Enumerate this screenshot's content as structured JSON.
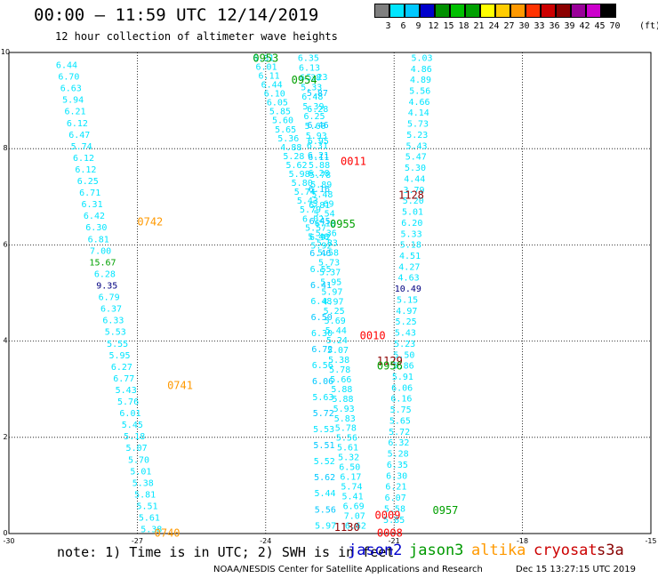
{
  "header": {
    "title": "00:00 – 11:59 UTC 12/14/2019",
    "subtitle": "12 hour collection of altimeter wave heights"
  },
  "color_scale": {
    "labels": [
      "3",
      "6",
      "9",
      "12",
      "15",
      "18",
      "21",
      "24",
      "27",
      "30",
      "33",
      "36",
      "39",
      "42",
      "45",
      "70"
    ],
    "unit": "(ft)",
    "colors": [
      "#7f7f7f",
      "#00e5ff",
      "#00c8ff",
      "#0000cc",
      "#009000",
      "#00c000",
      "#00a000",
      "#ffff00",
      "#ffcc00",
      "#ff9900",
      "#ff3300",
      "#cc0000",
      "#8b0000",
      "#990099",
      "#cc00cc",
      "#000000"
    ]
  },
  "footer": {
    "note": "note: 1) Time is in UTC; 2) SWH is in feet",
    "legend": [
      {
        "name": "jason2",
        "color": "#0000cc"
      },
      {
        "name": "jason3",
        "color": "#009900"
      },
      {
        "name": "altika",
        "color": "#ff9900"
      },
      {
        "name": "cryosat",
        "color": "#cc0000"
      },
      {
        "name": "s3a",
        "color": "#880000"
      }
    ],
    "credit": "NOAA/NESDIS Center for Satellite Applications and Research",
    "generated": "Dec 15 13:27:15 UTC 2019"
  },
  "chart_data": {
    "type": "scatter",
    "xlim": [
      -30,
      -15
    ],
    "ylim": [
      0,
      10
    ],
    "x_ticks": [
      "-30",
      "-27",
      "-24",
      "-21",
      "-18",
      "-15"
    ],
    "y_ticks": [
      "0",
      "2",
      "4",
      "6",
      "8",
      "10"
    ],
    "grid": true,
    "grid_style": "dotted",
    "colors": {
      "light": "#00e5ff",
      "dark": "#00c8ff",
      "navy": "#000080",
      "green": "#00a000",
      "orange": "#ff9900",
      "red": "#ff0000",
      "maroon": "#8b0000"
    },
    "tracks": [
      {
        "x0": -28.65,
        "y0": 9.75,
        "x1": -26.67,
        "y1": 0.1,
        "color": "light",
        "values": [
          "6.44",
          "6.70",
          "6.63",
          "5.94",
          "6.21",
          "6.12",
          "6.47",
          "5.74",
          "6.12",
          "6.12",
          "6.25",
          "6.71",
          "6.31",
          "6.42",
          "6.30",
          "6.81",
          "7.00",
          "15.67",
          "6.28",
          "9.35",
          "6.79",
          "6.37",
          "6.33",
          "5.53",
          "5.55",
          "5.95",
          "6.27",
          "6.77",
          "5.43",
          "5.76",
          "6.01",
          "5.45",
          "5.18",
          "5.07",
          "5.70",
          "5.01",
          "5.38",
          "5.81",
          "5.51",
          "5.61",
          "5.38"
        ],
        "overrides": {
          "17": "green",
          "19": "navy"
        }
      },
      {
        "x0": -24.05,
        "y0": 9.9,
        "x1": -22.7,
        "y1": 6.0,
        "color": "light",
        "values": [
          "6.31",
          "6.01",
          "6.11",
          "6.44",
          "6.10",
          "6.05",
          "5.85",
          "5.60",
          "5.65",
          "5.36",
          "4.88",
          "5.28",
          "5.62",
          "5.98",
          "5.80",
          "5.74",
          "5.43",
          "5.79",
          "6.02",
          "5.57",
          "5.48",
          "5.92"
        ]
      },
      {
        "x0": -23.0,
        "y0": 9.9,
        "x1": -21.9,
        "y1": 0.18,
        "color": "light",
        "values": [
          "6.35",
          "6.13",
          "6.38",
          "5.33",
          "6.48",
          "5.39",
          "6.25",
          "5.60",
          "5.93",
          "6.31",
          "6.21",
          "5.88",
          "5.78",
          "5.89",
          "5.48",
          "5.69",
          "5.54",
          "6.16",
          "5.36",
          "5.83",
          "5.58",
          "5.73",
          "5.37",
          "5.95",
          "5.97",
          "4.97",
          "5.25",
          "5.69",
          "5.44",
          "5.24",
          "5.07",
          "5.38",
          "5.78",
          "5.66",
          "5.88",
          "5.88",
          "5.93",
          "5.83",
          "5.78",
          "5.56",
          "5.61",
          "5.32",
          "6.50",
          "6.17",
          "5.74",
          "5.41",
          "6.69",
          "7.07",
          "6.62"
        ]
      },
      {
        "x0": -22.8,
        "y0": 9.5,
        "x1": -22.6,
        "y1": 0.18,
        "color": "light",
        "values": [
          "5.23",
          "5.87",
          "6.28",
          "6.46",
          "6.95",
          "6.11",
          "6.28",
          "6.16",
          "6.81",
          "6.45",
          "6.92",
          "6.46",
          "6.55",
          "6.41",
          "6.48",
          "6.50",
          "6.30",
          "6.72",
          "6.56",
          "6.06",
          "5.63",
          "5.72",
          "5.53",
          "5.51",
          "5.52",
          "5.62",
          "5.44",
          "5.56",
          "5.97"
        ],
        "color_alt": "dark"
      },
      {
        "x0": -20.35,
        "y0": 9.9,
        "x1": -21.0,
        "y1": 0.3,
        "color": "light",
        "values": [
          "5.03",
          "4.86",
          "4.89",
          "5.56",
          "4.66",
          "4.14",
          "5.73",
          "5.23",
          "5.43",
          "5.47",
          "5.30",
          "4.44",
          "3.79",
          "5.20",
          "5.01",
          "6.20",
          "5.33",
          "5.18",
          "4.51",
          "4.27",
          "4.63",
          "10.49",
          "5.15",
          "4.97",
          "5.25",
          "5.43",
          "5.23",
          "5.50",
          "5.86",
          "5.91",
          "6.06",
          "6.16",
          "5.75",
          "5.65",
          "5.72",
          "6.32",
          "5.28",
          "6.35",
          "6.30",
          "6.21",
          "6.07",
          "5.58",
          "5.85"
        ],
        "overrides": {
          "21": "navy"
        }
      }
    ],
    "passes": [
      {
        "label": "0953",
        "x": -24.0,
        "y": 9.9,
        "color": "green"
      },
      {
        "label": "0954",
        "x": -23.1,
        "y": 9.45,
        "color": "green"
      },
      {
        "label": "0011",
        "x": -21.95,
        "y": 7.75,
        "color": "red"
      },
      {
        "label": "1128",
        "x": -20.6,
        "y": 7.05,
        "color": "maroon"
      },
      {
        "label": "0742",
        "x": -26.7,
        "y": 6.5,
        "color": "orange"
      },
      {
        "label": "0955",
        "x": -22.2,
        "y": 6.45,
        "color": "green"
      },
      {
        "label": "0010",
        "x": -21.5,
        "y": 4.13,
        "color": "red"
      },
      {
        "label": "1129",
        "x": -21.1,
        "y": 3.6,
        "color": "maroon"
      },
      {
        "label": "0956",
        "x": -21.1,
        "y": 3.5,
        "color": "green"
      },
      {
        "label": "0741",
        "x": -26.0,
        "y": 3.1,
        "color": "orange"
      },
      {
        "label": "0957",
        "x": -19.8,
        "y": 0.5,
        "color": "green"
      },
      {
        "label": "0009",
        "x": -21.15,
        "y": 0.4,
        "color": "red"
      },
      {
        "label": "1130",
        "x": -22.1,
        "y": 0.15,
        "color": "maroon"
      },
      {
        "label": "0008",
        "x": -21.1,
        "y": 0.03,
        "color": "red"
      },
      {
        "label": "0740",
        "x": -26.3,
        "y": 0.03,
        "color": "orange"
      }
    ]
  }
}
